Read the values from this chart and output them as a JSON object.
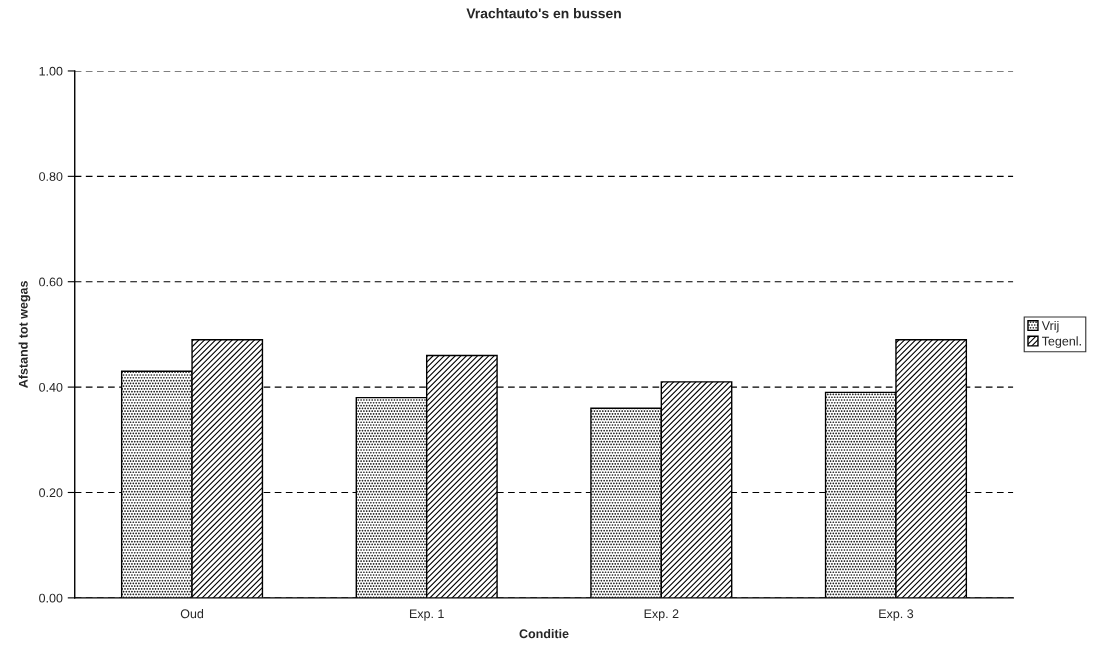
{
  "chart_data": {
    "type": "bar",
    "title": "Vrachtauto's en bussen",
    "xlabel": "Conditie",
    "ylabel": "Afstand tot wegas",
    "categories": [
      "Oud",
      "Exp. 1",
      "Exp. 2",
      "Exp. 3"
    ],
    "series": [
      {
        "name": "Vrij",
        "color": "#000000",
        "values": [
          0.43,
          0.38,
          0.36,
          0.39
        ]
      },
      {
        "name": "Tegenl.",
        "color": "#000000",
        "values": [
          0.49,
          0.46,
          0.41,
          0.49
        ]
      }
    ],
    "ylim": [
      0,
      1
    ],
    "yticks": [
      {
        "value": 0,
        "label": "0.00"
      },
      {
        "value": 0.2,
        "label": "0.20"
      },
      {
        "value": 0.4,
        "label": "0.40"
      },
      {
        "value": 0.6,
        "label": "0.60"
      },
      {
        "value": 0.8,
        "label": "0.80"
      },
      {
        "value": 1,
        "label": "1.00"
      }
    ],
    "grid": "y",
    "legend": "right"
  }
}
